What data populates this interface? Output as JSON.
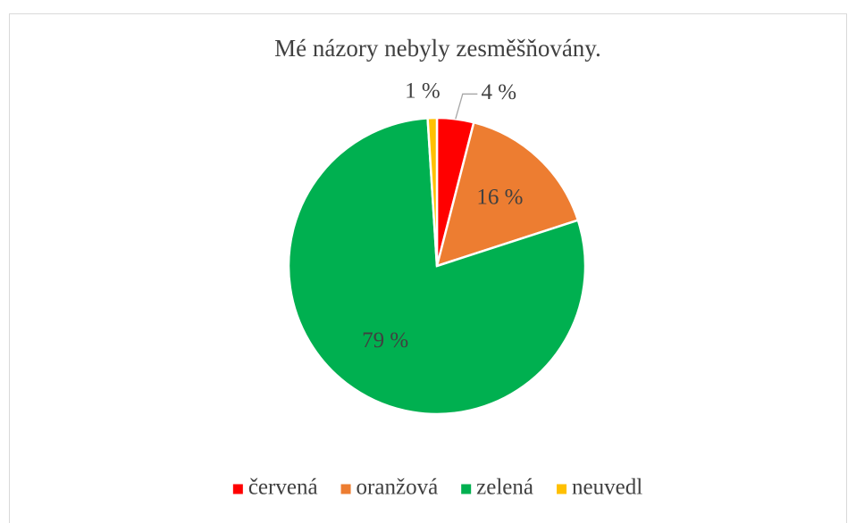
{
  "chart_data": {
    "type": "pie",
    "title": "Mé názory nebyly zesměšňovány.",
    "categories": [
      "červená",
      "oranžová",
      "zelená",
      "neuvedl"
    ],
    "values": [
      4,
      16,
      79,
      1
    ],
    "value_labels": [
      "4 %",
      "16 %",
      "79 %",
      "1 %"
    ],
    "colors": [
      "#ff0000",
      "#ed7d31",
      "#00b050",
      "#ffc000"
    ],
    "legend": "bottom"
  }
}
